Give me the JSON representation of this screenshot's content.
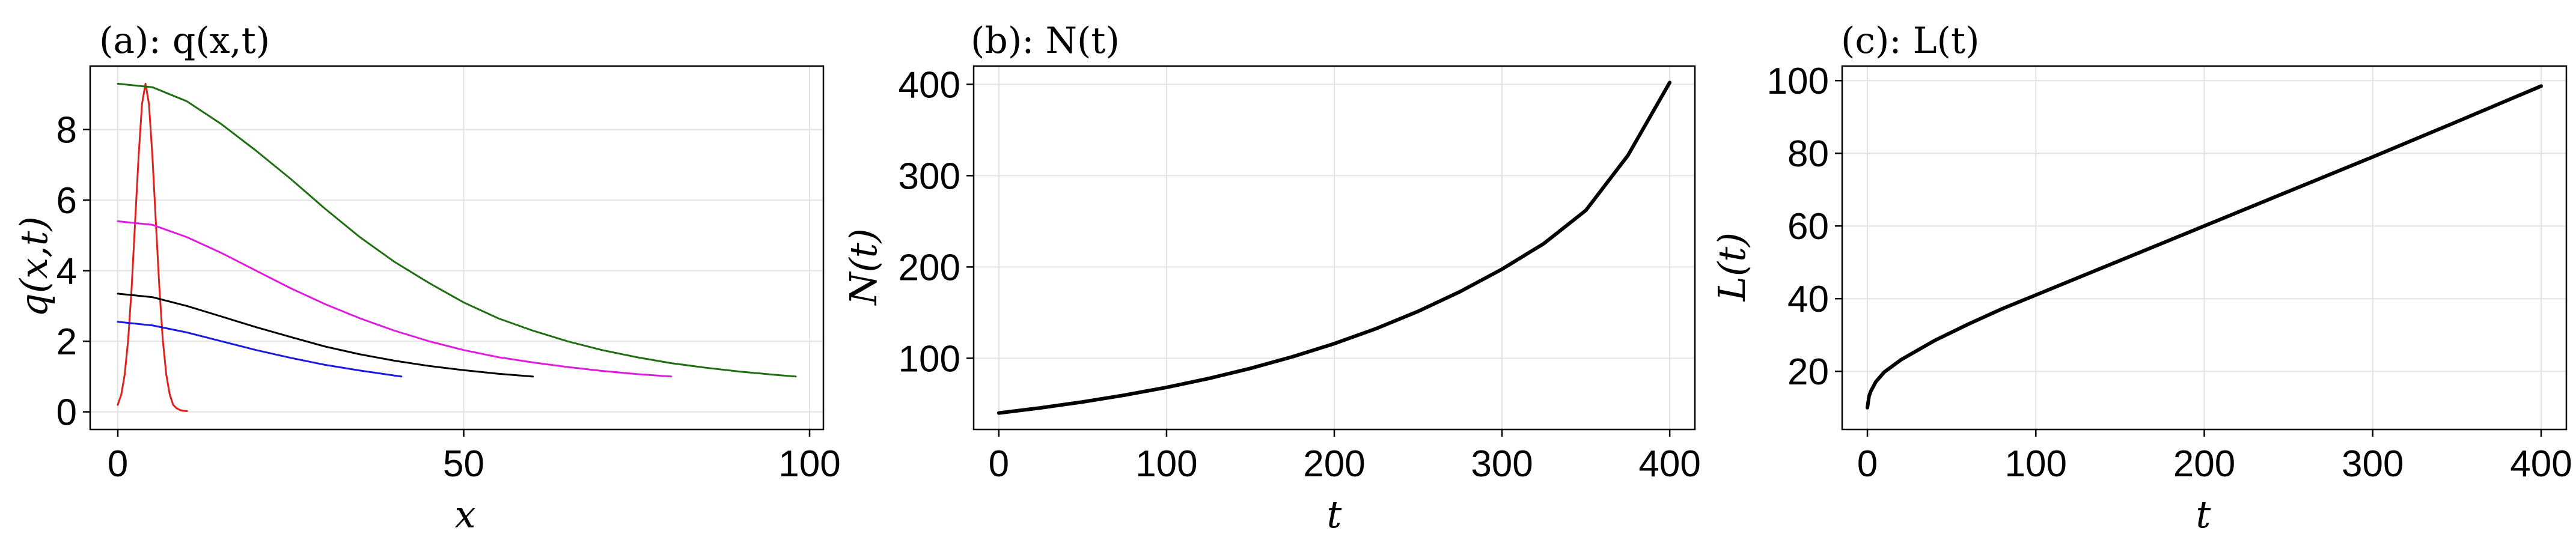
{
  "chart_data": [
    {
      "type": "line",
      "title": "(a): q(x,t)",
      "xlabel": "x",
      "ylabel": "q(x,t)",
      "xlim": [
        -4,
        102
      ],
      "ylim": [
        -0.5,
        9.8
      ],
      "xticks": [
        0,
        50,
        100
      ],
      "yticks": [
        0,
        2,
        4,
        6,
        8
      ],
      "grid": true,
      "series": [
        {
          "color": "#e0201a",
          "x": [
            0,
            0.5,
            1,
            1.5,
            2,
            2.5,
            3,
            3.5,
            4,
            4.5,
            5,
            5.5,
            6,
            6.5,
            7,
            7.5,
            8,
            8.5,
            9,
            9.5,
            10
          ],
          "y": [
            0.2,
            0.49,
            1.06,
            2.05,
            3.54,
            5.38,
            7.24,
            8.73,
            9.3,
            8.73,
            7.24,
            5.38,
            3.54,
            2.05,
            1.06,
            0.49,
            0.2,
            0.1,
            0.05,
            0.03,
            0.02
          ]
        },
        {
          "color": "#1f6e12",
          "x": [
            0,
            5,
            10,
            15,
            20,
            25,
            30,
            35,
            40,
            45,
            50,
            55,
            60,
            65,
            70,
            75,
            80,
            85,
            90,
            95,
            98
          ],
          "y": [
            9.3,
            9.2,
            8.8,
            8.15,
            7.4,
            6.6,
            5.75,
            4.95,
            4.25,
            3.65,
            3.1,
            2.65,
            2.3,
            2.0,
            1.75,
            1.55,
            1.38,
            1.25,
            1.14,
            1.05,
            1.0
          ]
        },
        {
          "color": "#e01be0",
          "x": [
            0,
            5,
            10,
            15,
            20,
            25,
            30,
            35,
            40,
            45,
            50,
            55,
            60,
            65,
            70,
            75,
            80
          ],
          "y": [
            5.4,
            5.3,
            4.95,
            4.5,
            4.0,
            3.5,
            3.05,
            2.65,
            2.3,
            2.0,
            1.75,
            1.55,
            1.4,
            1.27,
            1.16,
            1.07,
            1.0
          ]
        },
        {
          "color": "#000000",
          "x": [
            0,
            5,
            10,
            15,
            20,
            25,
            30,
            35,
            40,
            45,
            50,
            55,
            60
          ],
          "y": [
            3.35,
            3.25,
            3.0,
            2.7,
            2.4,
            2.12,
            1.85,
            1.63,
            1.45,
            1.3,
            1.18,
            1.08,
            1.0
          ]
        },
        {
          "color": "#1a1ae0",
          "x": [
            0,
            5,
            10,
            15,
            20,
            25,
            30,
            35,
            41
          ],
          "y": [
            2.55,
            2.45,
            2.25,
            2.0,
            1.75,
            1.53,
            1.33,
            1.17,
            1.0
          ]
        }
      ]
    },
    {
      "type": "line",
      "title": "(b): N(t)",
      "xlabel": "t",
      "ylabel": "N(t)",
      "xlim": [
        -15,
        415
      ],
      "ylim": [
        22,
        420
      ],
      "xticks": [
        0,
        100,
        200,
        300,
        400
      ],
      "yticks": [
        100,
        200,
        300,
        400
      ],
      "grid": true,
      "series": [
        {
          "color": "#000000",
          "x": [
            0,
            25,
            50,
            75,
            100,
            125,
            150,
            175,
            200,
            225,
            250,
            275,
            300,
            325,
            350,
            375,
            400
          ],
          "y": [
            40,
            45.7,
            52.2,
            59.6,
            68.1,
            77.8,
            88.9,
            101.6,
            116.0,
            132.5,
            151.4,
            173,
            197.6,
            225.7,
            262,
            322,
            402
          ]
        }
      ]
    },
    {
      "type": "line",
      "title": "(c): L(t)",
      "xlabel": "t",
      "ylabel": "L(t)",
      "xlim": [
        -15,
        415
      ],
      "ylim": [
        4,
        104
      ],
      "xticks": [
        0,
        100,
        200,
        300,
        400
      ],
      "yticks": [
        20,
        40,
        60,
        80,
        100
      ],
      "grid": true,
      "series": [
        {
          "color": "#000000",
          "x": [
            0,
            1,
            2,
            5,
            10,
            20,
            40,
            60,
            80,
            100,
            150,
            200,
            250,
            300,
            350,
            400
          ],
          "y": [
            10,
            13.2,
            14.5,
            17.1,
            19.8,
            23.2,
            28.5,
            33.0,
            37.2,
            41.0,
            50.5,
            60.0,
            69.5,
            79.0,
            88.7,
            98.5
          ]
        }
      ]
    }
  ]
}
